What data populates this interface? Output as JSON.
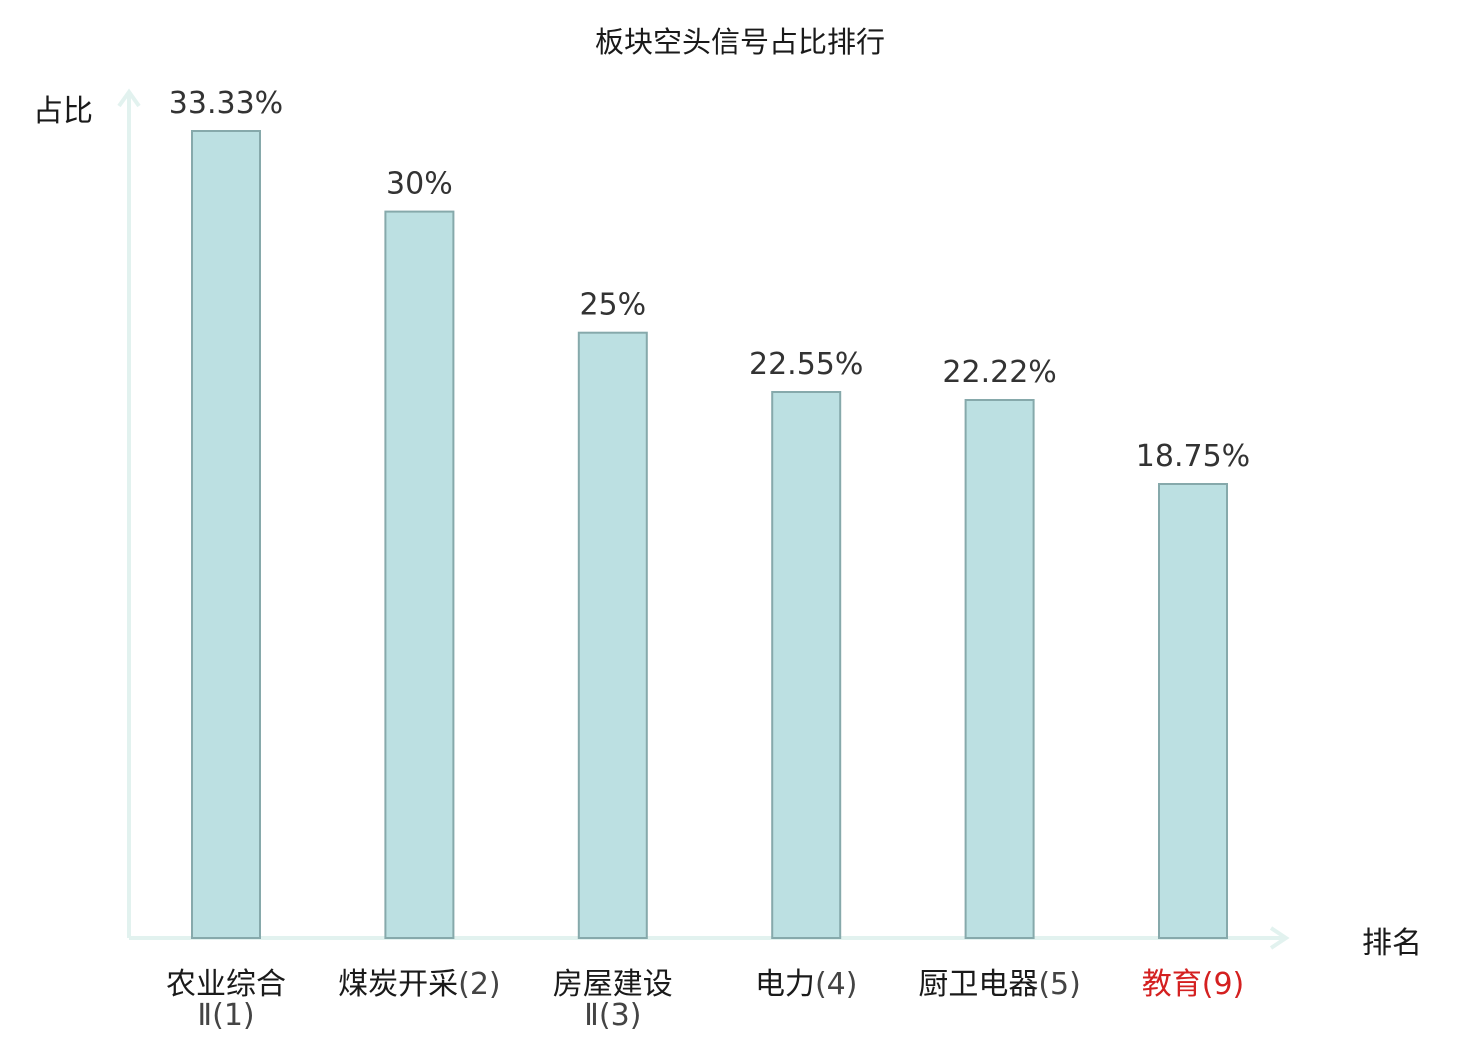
{
  "chart_data": {
    "type": "bar",
    "title": "板块空头信号占比排行",
    "xlabel": "排名",
    "ylabel": "占比",
    "ylim": [
      0,
      33.33
    ],
    "grid": false,
    "categories": [
      {
        "name_lines": [
          "农业综合"
        ],
        "rank_text": "Ⅱ(1)",
        "value": 33.33,
        "value_label": "33.33%",
        "highlight": false
      },
      {
        "name_lines": [
          "煤炭开采"
        ],
        "rank_text": "(2)",
        "value": 30,
        "value_label": "30%",
        "highlight": false
      },
      {
        "name_lines": [
          "房屋建设"
        ],
        "rank_text": "Ⅱ(3)",
        "value": 25,
        "value_label": "25%",
        "highlight": false
      },
      {
        "name_lines": [
          "电力"
        ],
        "rank_text": "(4)",
        "value": 22.55,
        "value_label": "22.55%",
        "highlight": false
      },
      {
        "name_lines": [
          "厨卫电器"
        ],
        "rank_text": "(5)",
        "value": 22.22,
        "value_label": "22.22%",
        "highlight": false
      },
      {
        "name_lines": [
          "教育"
        ],
        "rank_text": "(9)",
        "value": 18.75,
        "value_label": "18.75%",
        "highlight": true
      }
    ],
    "colors": {
      "bar_fill": "#bce0e2",
      "bar_stroke": "#86a9ab",
      "axis": "#e2f2ef",
      "highlight_text": "#d42020"
    }
  }
}
